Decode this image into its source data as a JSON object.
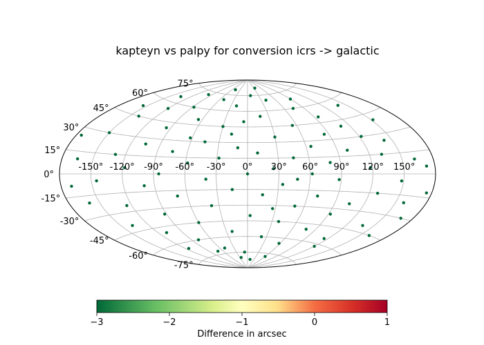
{
  "chart_data": {
    "type": "scatter",
    "projection": "aitoff",
    "title": "kapteyn vs palpy for conversion icrs -> galactic",
    "xlabel": "",
    "ylabel": "",
    "grid": true,
    "lon_ticks": [
      "-150°",
      "-120°",
      "-90°",
      "-60°",
      "-30°",
      "0°",
      "30°",
      "60°",
      "90°",
      "120°",
      "150°"
    ],
    "lat_ticks": [
      "-75°",
      "-60°",
      "-45°",
      "-30°",
      "-15°",
      "0°",
      "15°",
      "30°",
      "45°",
      "60°",
      "75°"
    ],
    "series": [
      {
        "marker_color": "#006837",
        "description_value": -3,
        "points": [
          [
            -165,
            10
          ],
          [
            -160,
            -20
          ],
          [
            -150,
            30
          ],
          [
            -145,
            -5
          ],
          [
            -140,
            45
          ],
          [
            -138,
            -40
          ],
          [
            -130,
            15
          ],
          [
            -125,
            -25
          ],
          [
            -120,
            55
          ],
          [
            -118,
            5
          ],
          [
            -110,
            -50
          ],
          [
            -105,
            25
          ],
          [
            -100,
            -10
          ],
          [
            -95,
            40
          ],
          [
            -92,
            -35
          ],
          [
            -88,
            60
          ],
          [
            -85,
            0
          ],
          [
            -80,
            -60
          ],
          [
            -75,
            20
          ],
          [
            -70,
            -20
          ],
          [
            -65,
            50
          ],
          [
            -60,
            -45
          ],
          [
            -58,
            10
          ],
          [
            -52,
            70
          ],
          [
            -50,
            -70
          ],
          [
            -45,
            30
          ],
          [
            -40,
            -5
          ],
          [
            -38,
            -30
          ],
          [
            -30,
            45
          ],
          [
            -28,
            15
          ],
          [
            -22,
            -55
          ],
          [
            -20,
            65
          ],
          [
            -15,
            -15
          ],
          [
            -10,
            25
          ],
          [
            -8,
            -75
          ],
          [
            -5,
            50
          ],
          [
            0,
            0
          ],
          [
            3,
            -40
          ],
          [
            8,
            75
          ],
          [
            10,
            20
          ],
          [
            15,
            -20
          ],
          [
            18,
            55
          ],
          [
            22,
            -60
          ],
          [
            25,
            5
          ],
          [
            30,
            35
          ],
          [
            34,
            -10
          ],
          [
            38,
            -45
          ],
          [
            40,
            70
          ],
          [
            45,
            15
          ],
          [
            50,
            -30
          ],
          [
            55,
            45
          ],
          [
            58,
            -65
          ],
          [
            62,
            0
          ],
          [
            65,
            25
          ],
          [
            70,
            -20
          ],
          [
            74,
            60
          ],
          [
            78,
            -50
          ],
          [
            80,
            10
          ],
          [
            85,
            35
          ],
          [
            88,
            -5
          ],
          [
            92,
            -35
          ],
          [
            95,
            50
          ],
          [
            100,
            20
          ],
          [
            105,
            -25
          ],
          [
            110,
            40
          ],
          [
            115,
            -55
          ],
          [
            118,
            5
          ],
          [
            122,
            30
          ],
          [
            128,
            -15
          ],
          [
            132,
            15
          ],
          [
            138,
            -40
          ],
          [
            142,
            25
          ],
          [
            148,
            -5
          ],
          [
            152,
            40
          ],
          [
            158,
            -20
          ],
          [
            162,
            10
          ],
          [
            168,
            -30
          ],
          [
            172,
            5
          ],
          [
            -170,
            -8
          ],
          [
            -155,
            52
          ],
          [
            -135,
            65
          ],
          [
            -115,
            -65
          ],
          [
            -98,
            72
          ],
          [
            -72,
            -72
          ],
          [
            -48,
            80
          ],
          [
            -25,
            -80
          ],
          [
            12,
            -82
          ],
          [
            35,
            82
          ],
          [
            60,
            -78
          ],
          [
            90,
            68
          ],
          [
            120,
            -62
          ],
          [
            140,
            55
          ],
          [
            160,
            -45
          ],
          [
            -175,
            25
          ],
          [
            175,
            -12
          ],
          [
            -62,
            33
          ],
          [
            48,
            -5
          ],
          [
            -18,
            38
          ],
          [
            27,
            -33
          ]
        ]
      }
    ],
    "colorbar": {
      "colormap": "RdYlGn_r",
      "min": -3,
      "max": 1,
      "tick_labels": [
        "−3",
        "−2",
        "−1",
        "0",
        "1"
      ],
      "label": "Difference in arcsec"
    }
  }
}
